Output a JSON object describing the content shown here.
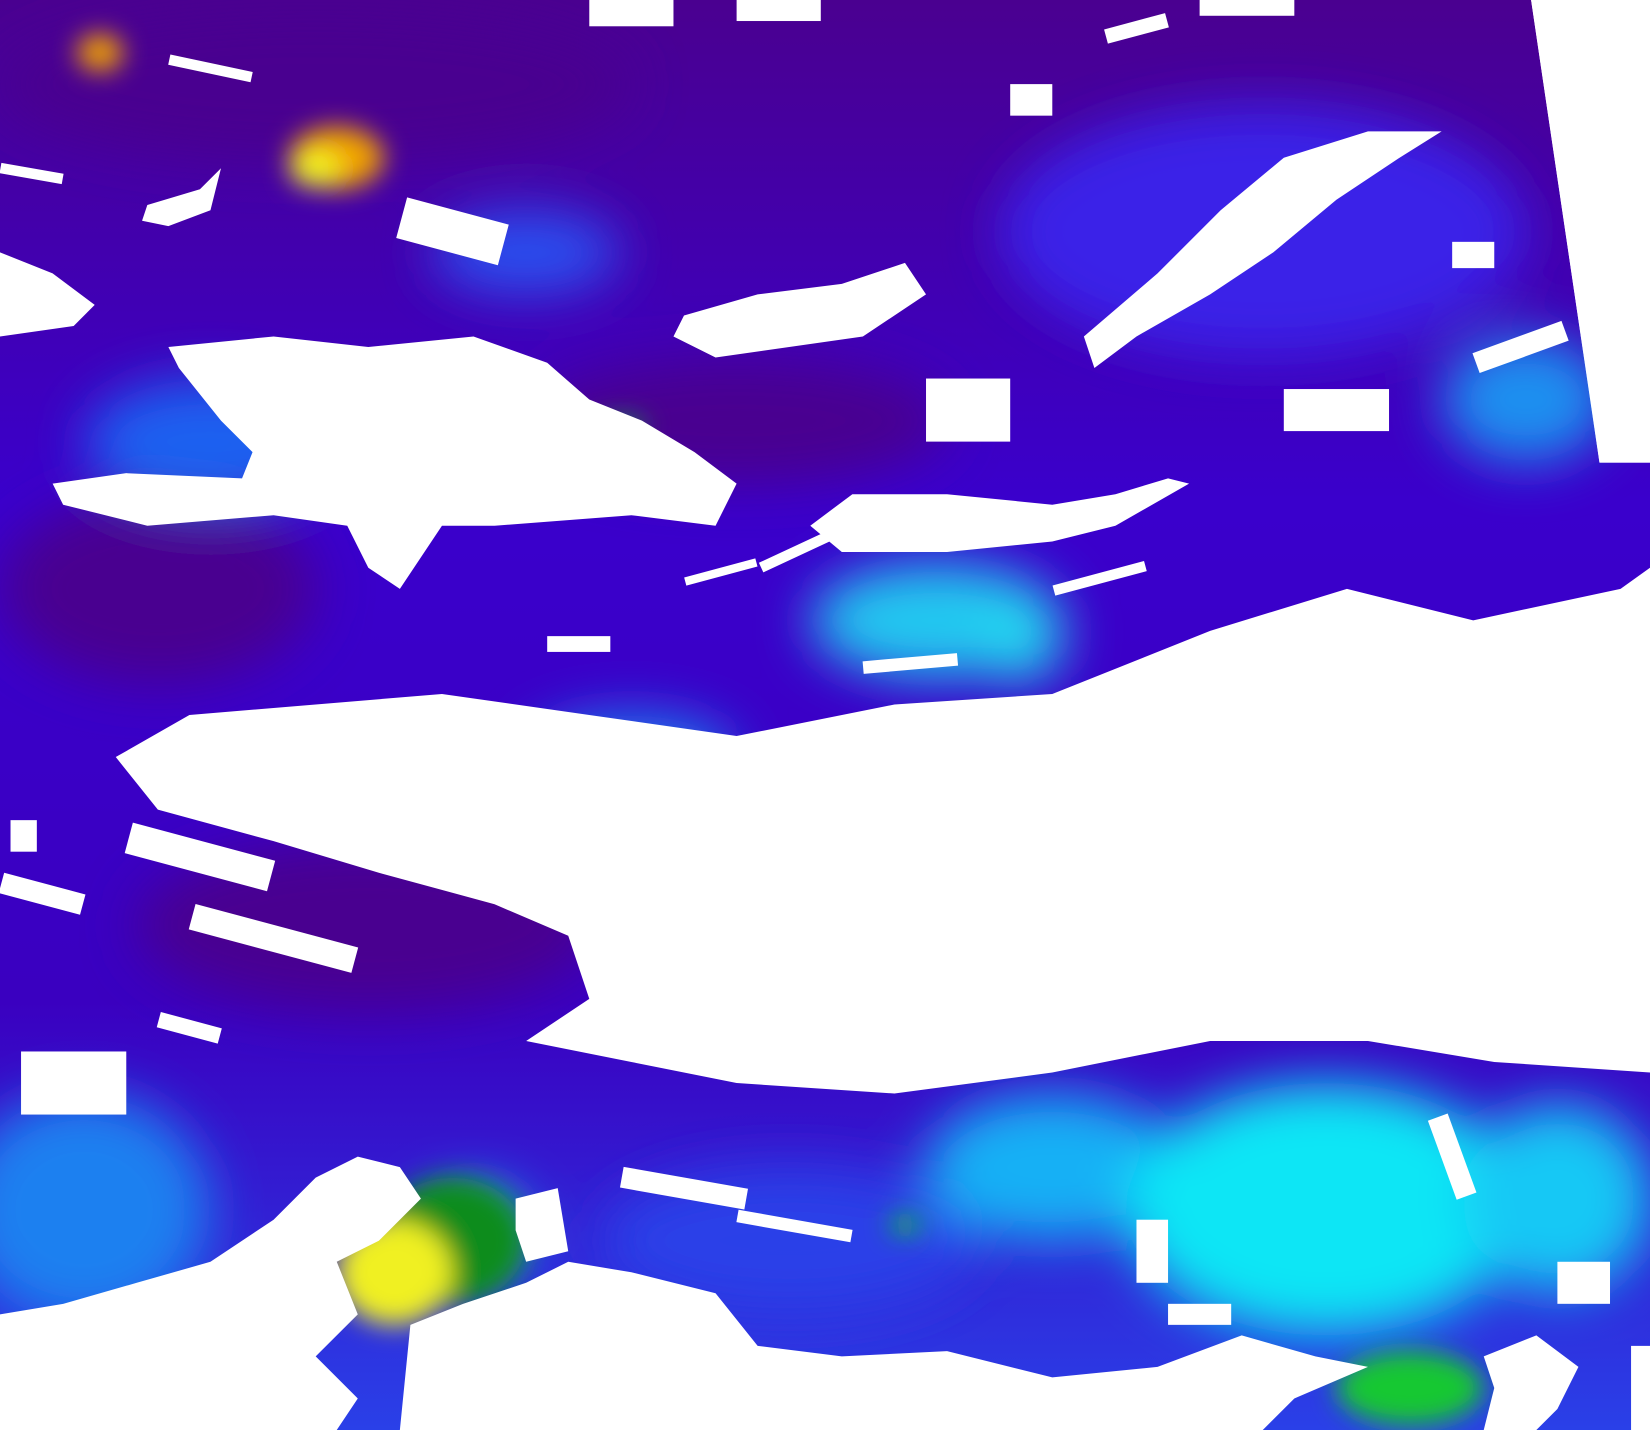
{
  "image": {
    "kind": "satellite ocean color composite",
    "palette": {
      "background": "#ffffff",
      "deep_purple": "#4a0090",
      "violet": "#3b00c8",
      "indigo": "#3300dd",
      "blue": "#1e5cf0",
      "azure": "#1aa0f5",
      "cyan": "#10e6f5",
      "green": "#12c832",
      "dark_green": "#0a8c1e",
      "yellow": "#f0f020",
      "orange": "#f0a000",
      "cloud": "#ffffff"
    }
  }
}
